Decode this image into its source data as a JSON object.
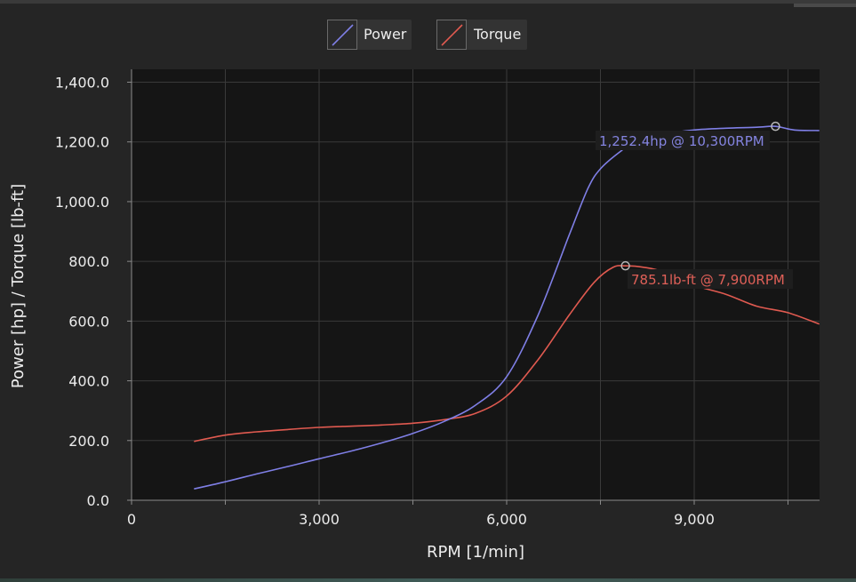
{
  "legend": {
    "power_label": "Power",
    "torque_label": "Torque"
  },
  "colors": {
    "background": "#252525",
    "plot_background": "#151515",
    "grid": "#3a3a3a",
    "power": "#7f7fe6",
    "torque": "#e05a50",
    "text": "#ececec"
  },
  "chart_data": {
    "type": "line",
    "xlabel": "RPM [1/min]",
    "ylabel": "Power [hp] / Torque [lb-ft]",
    "xlim": [
      0,
      11000
    ],
    "ylim": [
      0,
      1400
    ],
    "x_ticks": [
      0,
      3000,
      6000,
      9000
    ],
    "x_tick_labels": [
      "0",
      "3,000",
      "6,000",
      "9,000"
    ],
    "x_minor_ticks": [
      1500,
      4500,
      7500,
      10500
    ],
    "y_ticks": [
      0,
      200,
      400,
      600,
      800,
      1000,
      1200,
      1400
    ],
    "y_tick_labels": [
      "0.0",
      "200.0",
      "400.0",
      "600.0",
      "800.0",
      "1,000.0",
      "1,200.0",
      "1,400.0"
    ],
    "grid": true,
    "legend_position": "top-center",
    "series": [
      {
        "name": "Power",
        "color": "#7f7fe6",
        "x": [
          1000,
          1500,
          2000,
          2500,
          3000,
          3500,
          4000,
          4500,
          5000,
          5500,
          6000,
          6500,
          7000,
          7300,
          7500,
          7800,
          8000,
          8500,
          9000,
          9500,
          10000,
          10300,
          10600,
          11000
        ],
        "y": [
          38,
          62,
          88,
          113,
          139,
          164,
          192,
          224,
          264,
          318,
          414,
          619,
          888,
          1044,
          1110,
          1165,
          1190,
          1225,
          1240,
          1246,
          1249,
          1252,
          1240,
          1238
        ]
      },
      {
        "name": "Torque",
        "color": "#e05a50",
        "x": [
          1000,
          1500,
          2000,
          2500,
          3000,
          3500,
          4000,
          4500,
          5000,
          5500,
          6000,
          6500,
          7000,
          7400,
          7700,
          7900,
          8200,
          8500,
          9000,
          9500,
          10000,
          10500,
          11000
        ],
        "y": [
          197,
          218,
          229,
          237,
          244,
          248,
          252,
          258,
          270,
          291,
          349,
          470,
          620,
          730,
          780,
          785,
          780,
          765,
          720,
          690,
          650,
          628,
          590
        ]
      }
    ],
    "annotations": [
      {
        "series": "Power",
        "text": "1,252.4hp @ 10,300RPM",
        "x": 10300,
        "y": 1252.4
      },
      {
        "series": "Torque",
        "text": "785.1lb-ft @ 7,900RPM",
        "x": 7900,
        "y": 785.1
      }
    ]
  }
}
